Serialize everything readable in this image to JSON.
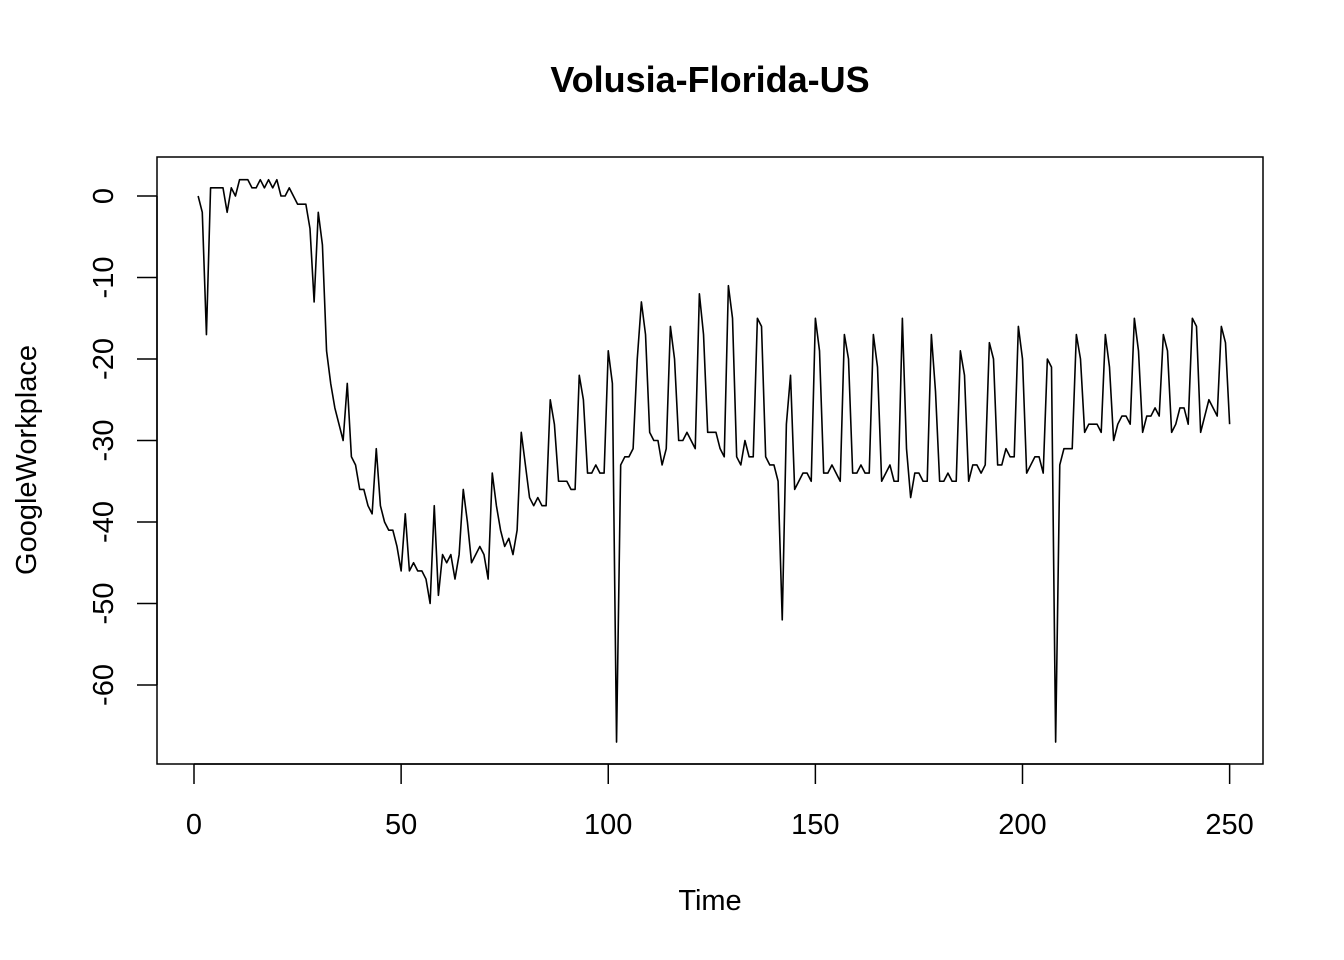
{
  "chart_data": {
    "type": "line",
    "title": "Volusia-Florida-US",
    "xlabel": "Time",
    "ylabel": "GoogleWorkplace",
    "xlim": [
      0,
      250
    ],
    "ylim": [
      -70,
      5
    ],
    "xticks": [
      0,
      50,
      100,
      150,
      200,
      250
    ],
    "yticks": [
      0,
      -10,
      -20,
      -30,
      -40,
      -50,
      -60
    ],
    "grid": false,
    "series": [
      {
        "color": "#000000",
        "x_start": 1,
        "y": [
          0,
          -2,
          -17,
          1,
          1,
          1,
          1,
          -2,
          1,
          0,
          2,
          2,
          2,
          1,
          1,
          2,
          1,
          2,
          1,
          2,
          0,
          0,
          1,
          0,
          -1,
          -1,
          -1,
          -4,
          -13,
          -2,
          -6,
          -19,
          -23,
          -26,
          -28,
          -30,
          -23,
          -32,
          -33,
          -36,
          -36,
          -38,
          -39,
          -31,
          -38,
          -40,
          -41,
          -41,
          -43,
          -46,
          -39,
          -46,
          -45,
          -46,
          -46,
          -47,
          -50,
          -38,
          -49,
          -44,
          -45,
          -44,
          -47,
          -44,
          -36,
          -40,
          -45,
          -44,
          -43,
          -44,
          -47,
          -34,
          -38,
          -41,
          -43,
          -42,
          -44,
          -41,
          -29,
          -33,
          -37,
          -38,
          -37,
          -38,
          -38,
          -25,
          -28,
          -35,
          -35,
          -35,
          -36,
          -36,
          -22,
          -25,
          -34,
          -34,
          -33,
          -34,
          -34,
          -19,
          -23,
          -67,
          -33,
          -32,
          -32,
          -31,
          -20,
          -13,
          -17,
          -29,
          -30,
          -30,
          -33,
          -31,
          -16,
          -20,
          -30,
          -30,
          -29,
          -30,
          -31,
          -12,
          -17,
          -29,
          -29,
          -29,
          -31,
          -32,
          -11,
          -15,
          -32,
          -33,
          -30,
          -32,
          -32,
          -15,
          -16,
          -32,
          -33,
          -33,
          -35,
          -52,
          -28,
          -22,
          -36,
          -35,
          -34,
          -34,
          -35,
          -15,
          -19,
          -34,
          -34,
          -33,
          -34,
          -35,
          -17,
          -20,
          -34,
          -34,
          -33,
          -34,
          -34,
          -17,
          -21,
          -35,
          -34,
          -33,
          -35,
          -35,
          -15,
          -31,
          -37,
          -34,
          -34,
          -35,
          -35,
          -17,
          -24,
          -35,
          -35,
          -34,
          -35,
          -35,
          -19,
          -22,
          -35,
          -33,
          -33,
          -34,
          -33,
          -18,
          -20,
          -33,
          -33,
          -31,
          -32,
          -32,
          -16,
          -20,
          -34,
          -33,
          -32,
          -32,
          -34,
          -20,
          -21,
          -67,
          -33,
          -31,
          -31,
          -31,
          -17,
          -20,
          -29,
          -28,
          -28,
          -28,
          -29,
          -17,
          -21,
          -30,
          -28,
          -27,
          -27,
          -28,
          -15,
          -19,
          -29,
          -27,
          -27,
          -26,
          -27,
          -17,
          -19,
          -29,
          -28,
          -26,
          -26,
          -28,
          -15,
          -16,
          -29,
          -27,
          -25,
          -26,
          -27,
          -16,
          -18,
          -28
        ]
      }
    ]
  }
}
